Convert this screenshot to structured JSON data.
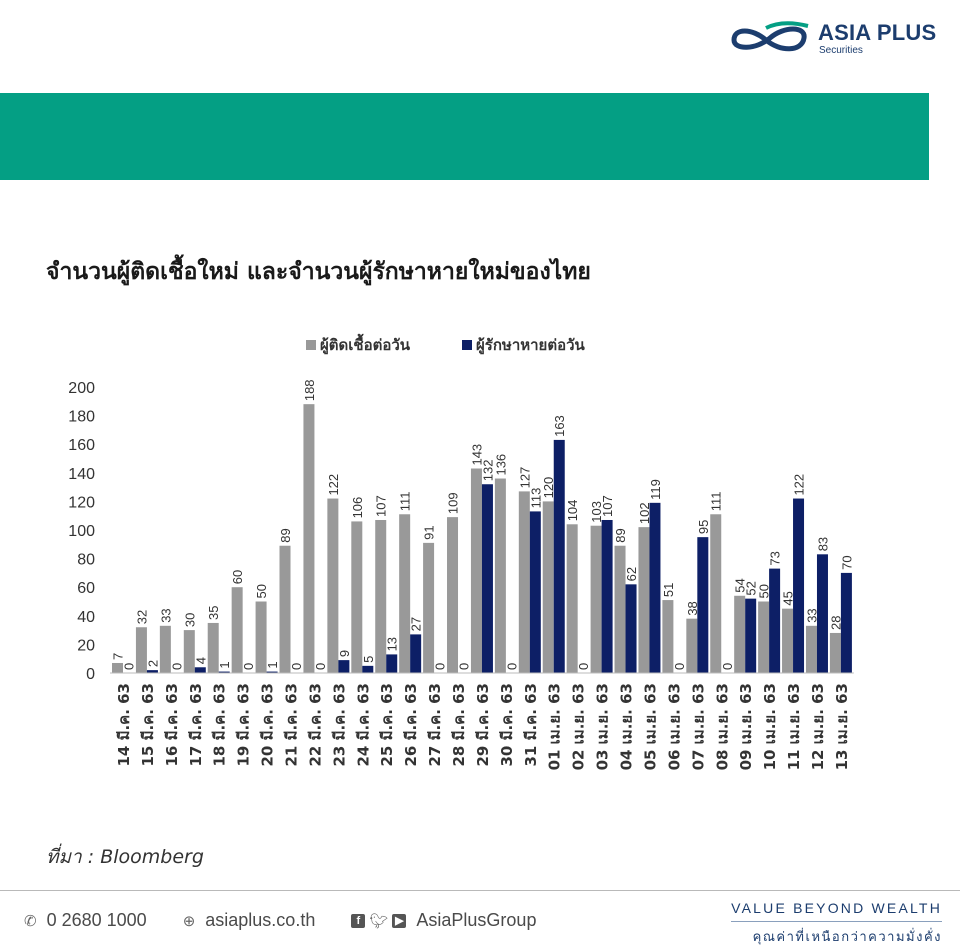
{
  "header": {
    "logo_name": "ASIA PLUS",
    "logo_sub": "Securities",
    "banner_color": "#049f84",
    "brand_color": "#1c3d6e"
  },
  "title": "จำนวนผู้ติดเชื้อใหม่ และจำนวนผู้รักษาหายใหม่ของไทย",
  "source": "ที่มา : Bloomberg",
  "footer": {
    "phone_icon": "phone-icon",
    "phone": "0 2680 1000",
    "web_icon": "globe-icon",
    "website": "asiaplus.co.th",
    "social_icons": [
      "facebook-icon",
      "twitter-icon",
      "youtube-icon"
    ],
    "social": "AsiaPlusGroup",
    "tagline": "VALUE BEYOND WEALTH",
    "tagline_th": "คุณค่าที่เหนือกว่าความมั่งคั่ง"
  },
  "chart_data": {
    "type": "bar",
    "title": "",
    "xlabel": "",
    "ylabel": "",
    "ylim": [
      0,
      200
    ],
    "yticks": [
      0,
      20,
      40,
      60,
      80,
      100,
      120,
      140,
      160,
      180,
      200
    ],
    "grid": false,
    "legend_position": "top",
    "categories": [
      "14 มี.ค. 63",
      "15 มี.ค. 63",
      "16 มี.ค. 63",
      "17 มี.ค. 63",
      "18 มี.ค. 63",
      "19 มี.ค. 63",
      "20 มี.ค. 63",
      "21 มี.ค. 63",
      "22 มี.ค. 63",
      "23 มี.ค. 63",
      "24 มี.ค. 63",
      "25 มี.ค. 63",
      "26 มี.ค. 63",
      "27 มี.ค. 63",
      "28 มี.ค. 63",
      "29 มี.ค. 63",
      "30 มี.ค. 63",
      "31 มี.ค. 63",
      "01 เม.ย. 63",
      "02 เม.ย. 63",
      "03 เม.ย. 63",
      "04 เม.ย. 63",
      "05 เม.ย. 63",
      "06 เม.ย. 63",
      "07 เม.ย. 63",
      "08 เม.ย. 63",
      "09 เม.ย. 63",
      "10 เม.ย. 63",
      "11 เม.ย. 63",
      "12 เม.ย. 63",
      "13 เม.ย. 63"
    ],
    "series": [
      {
        "name": "ผู้ติดเชื้อต่อวัน",
        "color": "#999999",
        "values": [
          7,
          32,
          33,
          30,
          35,
          60,
          50,
          89,
          188,
          122,
          106,
          107,
          111,
          91,
          109,
          143,
          136,
          127,
          120,
          104,
          103,
          89,
          102,
          51,
          38,
          111,
          54,
          50,
          45,
          33,
          28
        ]
      },
      {
        "name": "ผู้รักษาหายต่อวัน",
        "color": "#0d1f66",
        "values": [
          0,
          2,
          0,
          4,
          1,
          0,
          1,
          0,
          0,
          9,
          5,
          13,
          27,
          0,
          0,
          132,
          0,
          113,
          163,
          0,
          107,
          62,
          119,
          0,
          95,
          0,
          52,
          73,
          122,
          83,
          70
        ]
      }
    ]
  }
}
